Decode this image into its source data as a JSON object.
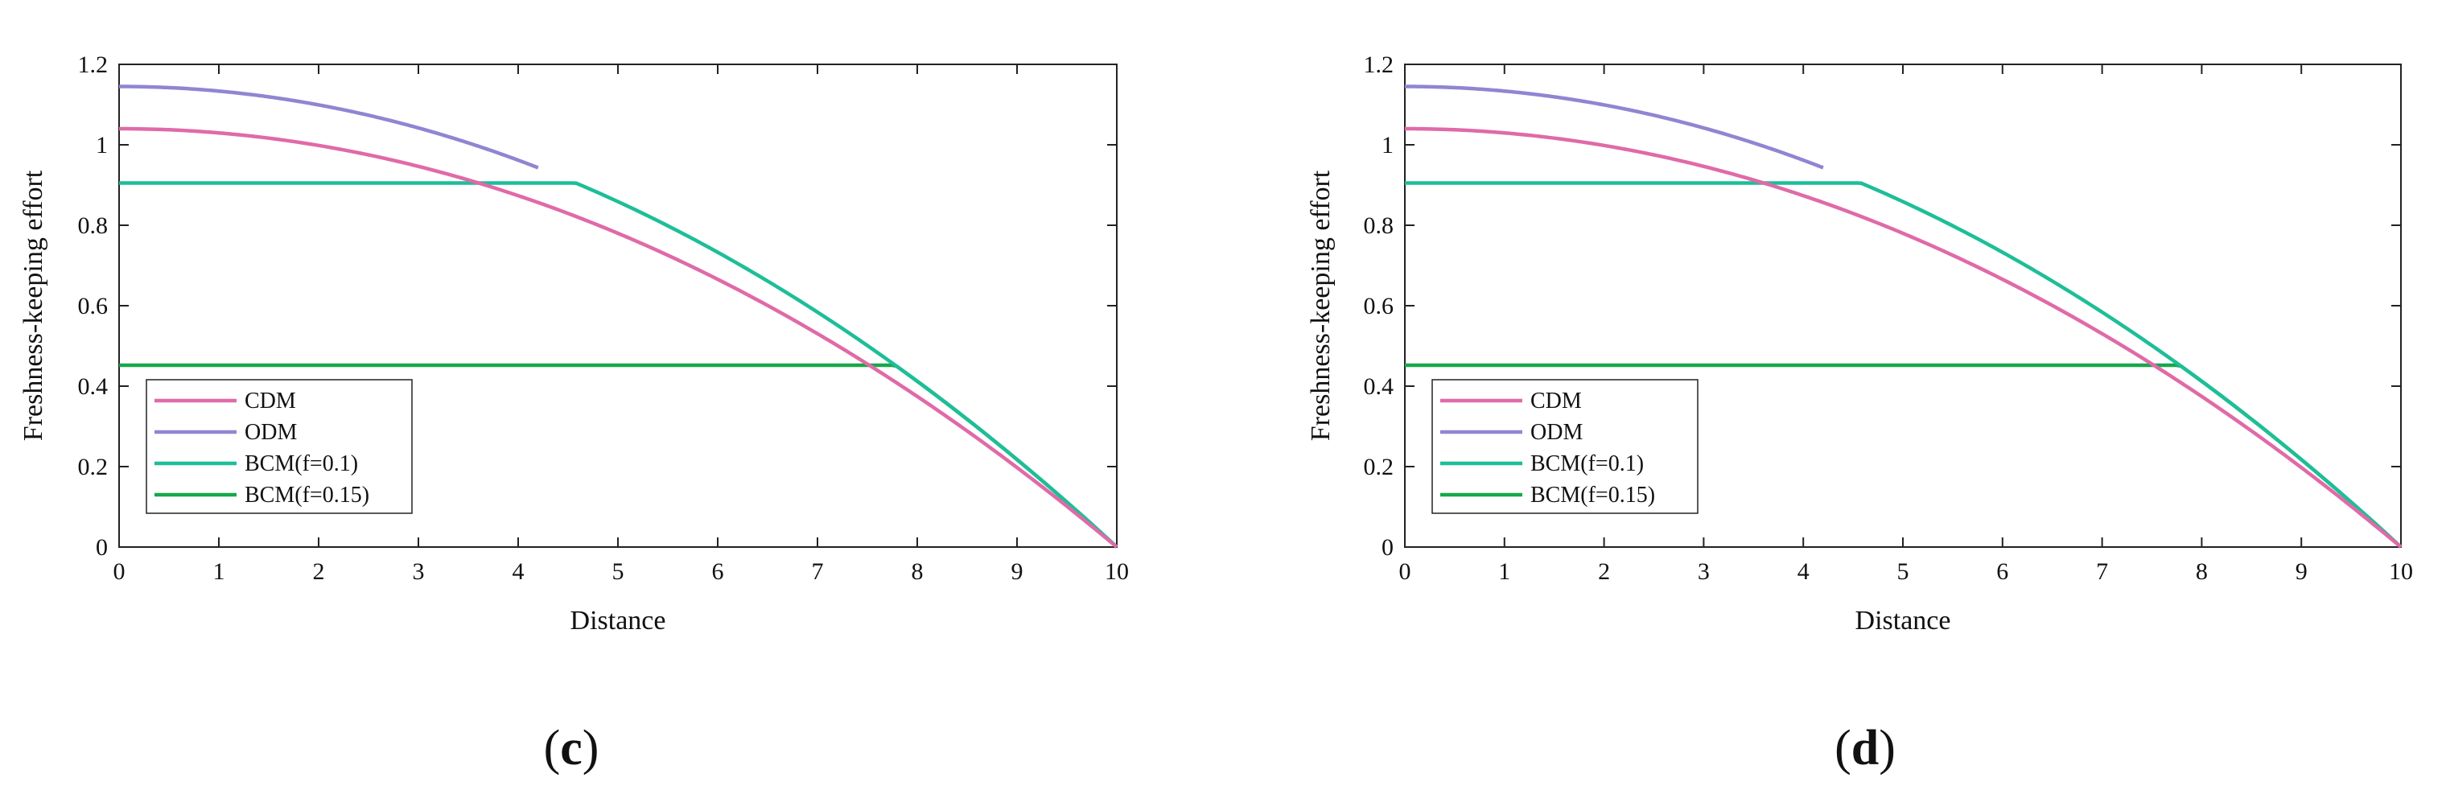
{
  "chart_data": [
    {
      "type": "line",
      "panel_label": "(c)",
      "panel_paren_open": "(",
      "panel_letter": "c",
      "panel_paren_close": ")",
      "title": "",
      "xlabel": "Distance",
      "ylabel": "Freshness-keeping effort",
      "xlim": [
        0,
        10
      ],
      "ylim": [
        0,
        1.2
      ],
      "xticks": [
        "0",
        "1",
        "2",
        "3",
        "4",
        "5",
        "6",
        "7",
        "8",
        "9",
        "10"
      ],
      "yticks": [
        "0",
        "0.2",
        "0.4",
        "0.6",
        "0.8",
        "1",
        "1.2"
      ],
      "legend_position": "bottom-left",
      "series": [
        {
          "name": "CDM",
          "color": "#E06AA8",
          "kind": "quadratic",
          "params": {
            "a": 1.04
          }
        },
        {
          "name": "ODM",
          "color": "#8F86D2",
          "kind": "quadratic",
          "params": {
            "a": 1.145
          },
          "x_end": 4.2
        },
        {
          "name": "BCM(f=0.1)",
          "color": "#1DBE98",
          "kind": "capped",
          "params": {
            "a": 1.145,
            "cap": 0.905
          }
        },
        {
          "name": "BCM(f=0.15)",
          "color": "#16A84A",
          "kind": "capped",
          "params": {
            "a": 1.145,
            "cap": 0.452
          }
        }
      ]
    },
    {
      "type": "line",
      "panel_label": "(d)",
      "panel_paren_open": "(",
      "panel_letter": "d",
      "panel_paren_close": ")",
      "title": "",
      "xlabel": "Distance",
      "ylabel": "Freshness-keeping effort",
      "xlim": [
        0,
        10
      ],
      "ylim": [
        0,
        1.2
      ],
      "xticks": [
        "0",
        "1",
        "2",
        "3",
        "4",
        "5",
        "6",
        "7",
        "8",
        "9",
        "10"
      ],
      "yticks": [
        "0",
        "0.2",
        "0.4",
        "0.6",
        "0.8",
        "1",
        "1.2"
      ],
      "legend_position": "bottom-left",
      "series": [
        {
          "name": "CDM",
          "color": "#E06AA8",
          "kind": "quadratic",
          "params": {
            "a": 1.04
          }
        },
        {
          "name": "ODM",
          "color": "#8F86D2",
          "kind": "quadratic",
          "params": {
            "a": 1.145
          },
          "x_end": 4.2
        },
        {
          "name": "BCM(f=0.1)",
          "color": "#1DBE98",
          "kind": "capped",
          "params": {
            "a": 1.145,
            "cap": 0.905
          }
        },
        {
          "name": "BCM(f=0.15)",
          "color": "#16A84A",
          "kind": "capped",
          "params": {
            "a": 1.145,
            "cap": 0.452
          }
        }
      ]
    }
  ]
}
